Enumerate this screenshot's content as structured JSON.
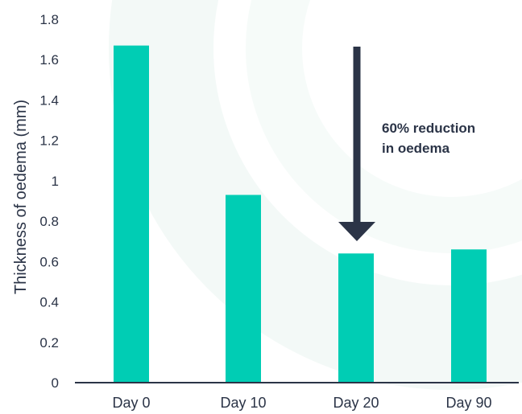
{
  "chart_data": {
    "type": "bar",
    "title": "",
    "xlabel": "",
    "ylabel": "Thickness of oedema (mm)",
    "categories": [
      "Day 0",
      "Day 10",
      "Day 20",
      "Day 90"
    ],
    "values": [
      1.67,
      0.93,
      0.64,
      0.66
    ],
    "ylim": [
      0,
      1.8
    ],
    "yticks": [
      "0",
      "0.2",
      "0.4",
      "0.6",
      "0.8",
      "1",
      "1.2",
      "1.4",
      "1.6",
      "1.8"
    ],
    "grid": false,
    "legend": "none",
    "annotation": {
      "line1": "60% reduction",
      "line2": "in oedema"
    }
  },
  "colors": {
    "bar": "#00cdb4",
    "axis": "#2b3447",
    "arrow": "#2b3447",
    "text": "#2b3447",
    "background_ring": "#f1f8f6"
  },
  "icons": {
    "arrow": "down-arrow-icon"
  }
}
